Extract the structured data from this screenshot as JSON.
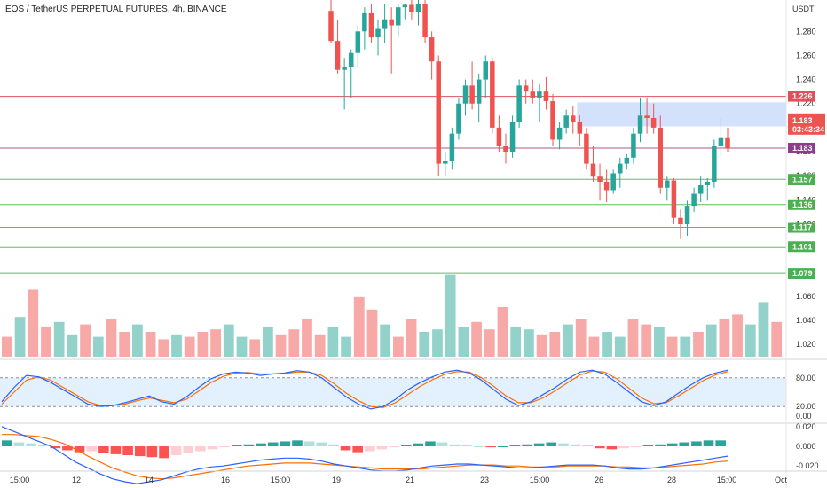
{
  "header": {
    "title": "EOS / TetherUS PERPETUAL FUTURES, 4h, BINANCE",
    "currency": "USDT",
    "countdown": "03:43:34"
  },
  "colors": {
    "up": "#26a69a",
    "down": "#ef5350",
    "up_volume": "#93d2cb",
    "down_volume": "#f7a9a7",
    "red_line": "#e0505a",
    "purple_line": "#b0558c",
    "green_line": "#5cbf5c",
    "zone": "#c6d7fb",
    "k_line": "#2962ff",
    "d_line": "#ff6d00",
    "macd_line": "#2962ff",
    "signal_line": "#ff6d00"
  },
  "chart_data": {
    "type": "candlestick",
    "price_axis": {
      "min": 1.015,
      "max": 1.306,
      "ticks": [
        "1.280",
        "1.260",
        "1.240",
        "1.220",
        "1.200",
        "1.180",
        "1.160",
        "1.140",
        "1.120",
        "1.100",
        "1.080",
        "1.060",
        "1.040",
        "1.020"
      ]
    },
    "x_ticks": [
      "15:00",
      "12",
      "14",
      "16",
      "15:00",
      "19",
      "21",
      "23",
      "15:00",
      "26",
      "28",
      "15:00",
      "Oct"
    ],
    "candles_ohlc": [
      [
        1.297,
        1.306,
        1.27,
        1.272
      ],
      [
        1.272,
        1.29,
        1.245,
        1.248
      ],
      [
        1.248,
        1.258,
        1.215,
        1.25
      ],
      [
        1.25,
        1.265,
        1.225,
        1.262
      ],
      [
        1.262,
        1.285,
        1.25,
        1.28
      ],
      [
        1.28,
        1.3,
        1.265,
        1.295
      ],
      [
        1.295,
        1.303,
        1.27,
        1.275
      ],
      [
        1.275,
        1.29,
        1.26,
        1.282
      ],
      [
        1.282,
        1.303,
        1.27,
        1.29
      ],
      [
        1.29,
        1.3,
        1.245,
        1.285
      ],
      [
        1.285,
        1.303,
        1.275,
        1.3
      ],
      [
        1.3,
        1.303,
        1.29,
        1.302
      ],
      [
        1.302,
        1.306,
        1.29,
        1.296
      ],
      [
        1.296,
        1.306,
        1.285,
        1.303
      ],
      [
        1.303,
        1.306,
        1.27,
        1.275
      ],
      [
        1.275,
        1.28,
        1.24,
        1.255
      ],
      [
        1.255,
        1.26,
        1.16,
        1.17
      ],
      [
        1.17,
        1.18,
        1.16,
        1.172
      ],
      [
        1.172,
        1.2,
        1.165,
        1.195
      ],
      [
        1.195,
        1.225,
        1.19,
        1.22
      ],
      [
        1.22,
        1.24,
        1.21,
        1.235
      ],
      [
        1.235,
        1.255,
        1.215,
        1.22
      ],
      [
        1.22,
        1.245,
        1.205,
        1.24
      ],
      [
        1.24,
        1.26,
        1.225,
        1.255
      ],
      [
        1.255,
        1.258,
        1.195,
        1.2
      ],
      [
        1.2,
        1.21,
        1.18,
        1.185
      ],
      [
        1.185,
        1.195,
        1.17,
        1.18
      ],
      [
        1.18,
        1.21,
        1.175,
        1.205
      ],
      [
        1.205,
        1.24,
        1.2,
        1.235
      ],
      [
        1.235,
        1.24,
        1.22,
        1.23
      ],
      [
        1.23,
        1.24,
        1.22,
        1.225
      ],
      [
        1.225,
        1.236,
        1.205,
        1.23
      ],
      [
        1.23,
        1.242,
        1.215,
        1.222
      ],
      [
        1.222,
        1.228,
        1.185,
        1.19
      ],
      [
        1.19,
        1.205,
        1.182,
        1.2
      ],
      [
        1.2,
        1.215,
        1.195,
        1.21
      ],
      [
        1.21,
        1.218,
        1.195,
        1.205
      ],
      [
        1.205,
        1.21,
        1.185,
        1.195
      ],
      [
        1.195,
        1.2,
        1.165,
        1.17
      ],
      [
        1.17,
        1.185,
        1.155,
        1.16
      ],
      [
        1.16,
        1.17,
        1.14,
        1.155
      ],
      [
        1.155,
        1.165,
        1.138,
        1.148
      ],
      [
        1.148,
        1.165,
        1.145,
        1.162
      ],
      [
        1.162,
        1.175,
        1.15,
        1.17
      ],
      [
        1.17,
        1.178,
        1.165,
        1.175
      ],
      [
        1.175,
        1.2,
        1.17,
        1.195
      ],
      [
        1.195,
        1.225,
        1.188,
        1.21
      ],
      [
        1.21,
        1.225,
        1.195,
        1.208
      ],
      [
        1.208,
        1.22,
        1.195,
        1.2
      ],
      [
        1.2,
        1.21,
        1.145,
        1.15
      ],
      [
        1.15,
        1.16,
        1.14,
        1.156
      ],
      [
        1.156,
        1.158,
        1.12,
        1.125
      ],
      [
        1.125,
        1.132,
        1.108,
        1.12
      ],
      [
        1.12,
        1.14,
        1.11,
        1.135
      ],
      [
        1.135,
        1.15,
        1.13,
        1.145
      ],
      [
        1.145,
        1.16,
        1.138,
        1.152
      ],
      [
        1.152,
        1.158,
        1.14,
        1.155
      ],
      [
        1.155,
        1.19,
        1.15,
        1.185
      ],
      [
        1.185,
        1.208,
        1.175,
        1.192
      ],
      [
        1.192,
        1.2,
        1.18,
        1.183
      ]
    ],
    "volume": [
      [
        0.8,
        "d"
      ],
      [
        1.6,
        "u"
      ],
      [
        2.7,
        "d"
      ],
      [
        1.2,
        "d"
      ],
      [
        1.4,
        "u"
      ],
      [
        0.9,
        "u"
      ],
      [
        1.3,
        "d"
      ],
      [
        0.8,
        "u"
      ],
      [
        1.5,
        "d"
      ],
      [
        1.0,
        "d"
      ],
      [
        1.3,
        "u"
      ],
      [
        1.0,
        "d"
      ],
      [
        0.7,
        "d"
      ],
      [
        0.9,
        "u"
      ],
      [
        0.8,
        "d"
      ],
      [
        1.0,
        "d"
      ],
      [
        1.1,
        "d"
      ],
      [
        1.3,
        "u"
      ],
      [
        0.8,
        "u"
      ],
      [
        0.7,
        "d"
      ],
      [
        1.2,
        "u"
      ],
      [
        0.9,
        "d"
      ],
      [
        1.1,
        "d"
      ],
      [
        1.5,
        "d"
      ],
      [
        0.9,
        "d"
      ],
      [
        1.2,
        "u"
      ],
      [
        0.8,
        "u"
      ],
      [
        2.4,
        "d"
      ],
      [
        1.9,
        "d"
      ],
      [
        1.3,
        "u"
      ],
      [
        0.8,
        "d"
      ],
      [
        1.5,
        "d"
      ],
      [
        1.0,
        "u"
      ],
      [
        1.1,
        "u"
      ],
      [
        3.3,
        "u"
      ],
      [
        1.2,
        "u"
      ],
      [
        1.4,
        "d"
      ],
      [
        1.1,
        "d"
      ],
      [
        2.0,
        "d"
      ],
      [
        1.2,
        "u"
      ],
      [
        1.1,
        "u"
      ],
      [
        0.9,
        "d"
      ],
      [
        1.0,
        "d"
      ],
      [
        1.3,
        "u"
      ],
      [
        1.5,
        "d"
      ],
      [
        0.8,
        "d"
      ],
      [
        1.0,
        "u"
      ],
      [
        0.8,
        "u"
      ],
      [
        1.5,
        "d"
      ],
      [
        1.3,
        "d"
      ],
      [
        1.2,
        "u"
      ],
      [
        0.8,
        "d"
      ],
      [
        0.8,
        "u"
      ],
      [
        1.0,
        "d"
      ],
      [
        1.3,
        "u"
      ],
      [
        1.5,
        "d"
      ],
      [
        1.7,
        "d"
      ],
      [
        1.3,
        "u"
      ],
      [
        2.2,
        "u"
      ],
      [
        1.4,
        "d"
      ]
    ],
    "horizontal_levels": [
      {
        "label": "1.226",
        "price": 1.226,
        "kind": "red"
      },
      {
        "label": "1.183",
        "price": 1.183,
        "kind": "purple"
      },
      {
        "label": "1.157",
        "price": 1.157,
        "kind": "green"
      },
      {
        "label": "1.136",
        "price": 1.136,
        "kind": "green"
      },
      {
        "label": "1.117",
        "price": 1.117,
        "kind": "green"
      },
      {
        "label": "1.101",
        "price": 1.101,
        "kind": "green"
      },
      {
        "label": "1.079",
        "price": 1.079,
        "kind": "green"
      }
    ],
    "current_price": "1.183",
    "supply_zone": {
      "top": 1.221,
      "bottom": 1.201,
      "from_candle": 37,
      "to_candle": 59
    },
    "stoch": {
      "ticks": [
        "80.00",
        "20.00",
        "0.00"
      ],
      "k": [
        30,
        60,
        85,
        82,
        70,
        55,
        40,
        25,
        20,
        22,
        28,
        35,
        42,
        30,
        25,
        40,
        60,
        78,
        88,
        92,
        90,
        85,
        88,
        90,
        95,
        92,
        80,
        60,
        40,
        25,
        15,
        20,
        35,
        55,
        70,
        82,
        92,
        96,
        90,
        75,
        55,
        35,
        22,
        30,
        45,
        60,
        78,
        92,
        96,
        88,
        70,
        50,
        30,
        22,
        30,
        48,
        65,
        80,
        90,
        96
      ],
      "d": [
        25,
        50,
        75,
        82,
        75,
        60,
        45,
        30,
        22,
        22,
        25,
        32,
        38,
        33,
        28,
        35,
        52,
        70,
        83,
        90,
        91,
        88,
        88,
        89,
        92,
        92,
        85,
        68,
        48,
        32,
        20,
        18,
        28,
        45,
        62,
        76,
        87,
        93,
        92,
        80,
        62,
        42,
        28,
        28,
        38,
        53,
        70,
        86,
        94,
        92,
        78,
        58,
        38,
        26,
        28,
        42,
        58,
        74,
        86,
        93
      ]
    },
    "macd": {
      "ticks": [
        "0.020",
        "0.000",
        "-0.020"
      ],
      "hist": [
        0.006,
        0.004,
        0.003,
        0.001,
        -0.002,
        -0.004,
        -0.006,
        -0.005,
        -0.007,
        -0.008,
        -0.009,
        -0.01,
        -0.011,
        -0.012,
        -0.009,
        -0.007,
        -0.005,
        -0.003,
        -0.001,
        0.001,
        0.002,
        0.003,
        0.004,
        0.005,
        0.006,
        0.005,
        0.004,
        0.002,
        -0.004,
        -0.006,
        -0.005,
        -0.003,
        -0.001,
        0.001,
        0.003,
        0.005,
        0.004,
        0.002,
        0.001,
        0.0,
        -0.001,
        0.0,
        0.001,
        0.002,
        0.003,
        0.004,
        0.003,
        0.002,
        0.001,
        -0.002,
        -0.003,
        -0.002,
        -0.001,
        0.001,
        0.002,
        0.003,
        0.004,
        0.005,
        0.006,
        0.006
      ],
      "macd_line": [
        0.02,
        0.015,
        0.01,
        0.005,
        0.0,
        -0.008,
        -0.016,
        -0.022,
        -0.028,
        -0.033,
        -0.036,
        -0.038,
        -0.036,
        -0.034,
        -0.03,
        -0.026,
        -0.023,
        -0.021,
        -0.02,
        -0.018,
        -0.016,
        -0.014,
        -0.013,
        -0.012,
        -0.012,
        -0.013,
        -0.015,
        -0.018,
        -0.02,
        -0.022,
        -0.024,
        -0.025,
        -0.025,
        -0.024,
        -0.022,
        -0.02,
        -0.019,
        -0.018,
        -0.018,
        -0.019,
        -0.02,
        -0.021,
        -0.022,
        -0.022,
        -0.021,
        -0.02,
        -0.019,
        -0.019,
        -0.019,
        -0.02,
        -0.022,
        -0.023,
        -0.023,
        -0.022,
        -0.02,
        -0.018,
        -0.016,
        -0.014,
        -0.012,
        -0.01
      ],
      "signal_line": [
        0.012,
        0.012,
        0.011,
        0.01,
        0.007,
        0.003,
        -0.003,
        -0.01,
        -0.016,
        -0.022,
        -0.026,
        -0.03,
        -0.032,
        -0.033,
        -0.032,
        -0.03,
        -0.028,
        -0.026,
        -0.024,
        -0.022,
        -0.02,
        -0.019,
        -0.018,
        -0.017,
        -0.017,
        -0.017,
        -0.018,
        -0.019,
        -0.02,
        -0.021,
        -0.022,
        -0.023,
        -0.023,
        -0.023,
        -0.023,
        -0.022,
        -0.021,
        -0.02,
        -0.019,
        -0.019,
        -0.019,
        -0.02,
        -0.02,
        -0.021,
        -0.021,
        -0.021,
        -0.02,
        -0.02,
        -0.02,
        -0.02,
        -0.021,
        -0.021,
        -0.022,
        -0.022,
        -0.021,
        -0.02,
        -0.019,
        -0.018,
        -0.016,
        -0.015
      ]
    }
  }
}
